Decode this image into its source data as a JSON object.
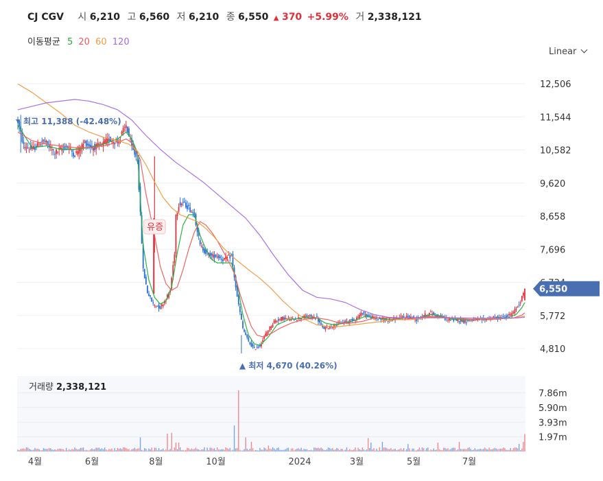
{
  "header": {
    "name": "CJ CGV",
    "open_label": "시",
    "open": "6,210",
    "high_label": "고",
    "high": "6,560",
    "low_label": "저",
    "low": "6,210",
    "close_label": "종",
    "close": "6,550",
    "change": "370",
    "change_pct": "+5.99%",
    "volume_label": "거",
    "volume": "2,338,121"
  },
  "ma_legend": {
    "label": "이동평균",
    "items": [
      {
        "text": "5",
        "color": "#1fae3a"
      },
      {
        "text": "20",
        "color": "#f0595c"
      },
      {
        "text": "60",
        "color": "#f29a3e"
      },
      {
        "text": "120",
        "color": "#a569e0"
      }
    ]
  },
  "scale_selector": "Linear",
  "colors": {
    "up": "#e0313b",
    "down": "#2a6fd6",
    "badge": "#4a6fb0",
    "ma5": "#1fae3a",
    "ma20": "#f0595c",
    "ma60": "#f29a3e",
    "ma120": "#a569e0"
  },
  "chart_data": [
    {
      "type": "candlestick",
      "y_ticks": [
        12506,
        11544,
        10582,
        9620,
        8658,
        7696,
        6734,
        5772,
        4810
      ],
      "y_tick_labels": [
        "12,506",
        "11,544",
        "10,582",
        "9,620",
        "8,658",
        "7,696",
        "6,734",
        "5,772",
        "4,810"
      ],
      "x_tick_labels": [
        "4월",
        "6월",
        "8월",
        "10월",
        "2024",
        "3월",
        "5월",
        "7월"
      ],
      "ylim": [
        4600,
        12700
      ],
      "last_price_label": "6,550",
      "annotations": [
        {
          "text": "최고 11,388 (-42.48%)",
          "value": 11388
        },
        {
          "text": "최저 4,670 (40.26%)",
          "value": 4670
        },
        {
          "text": "유증"
        }
      ],
      "price_path": [
        [
          0,
          11400
        ],
        [
          4,
          10700
        ],
        [
          10,
          10600
        ],
        [
          18,
          10850
        ],
        [
          26,
          10500
        ],
        [
          34,
          10700
        ],
        [
          40,
          10450
        ],
        [
          47,
          10800
        ],
        [
          52,
          10650
        ],
        [
          58,
          10700
        ],
        [
          64,
          10900
        ],
        [
          70,
          10800
        ],
        [
          76,
          11300
        ],
        [
          80,
          10650
        ],
        [
          84,
          10300
        ],
        [
          86,
          8700
        ],
        [
          88,
          7100
        ],
        [
          91,
          6450
        ],
        [
          95,
          6100
        ],
        [
          100,
          6000
        ],
        [
          104,
          6250
        ],
        [
          107,
          6500
        ],
        [
          110,
          7600
        ],
        [
          111,
          8700
        ],
        [
          113,
          9000
        ],
        [
          116,
          9050
        ],
        [
          120,
          8900
        ],
        [
          124,
          8700
        ],
        [
          128,
          7800
        ],
        [
          132,
          7600
        ],
        [
          136,
          7500
        ],
        [
          140,
          7500
        ],
        [
          144,
          7400
        ],
        [
          150,
          7500
        ],
        [
          154,
          6300
        ],
        [
          158,
          5400
        ],
        [
          162,
          5000
        ],
        [
          166,
          4800
        ],
        [
          170,
          4900
        ],
        [
          175,
          5300
        ],
        [
          180,
          5600
        ],
        [
          186,
          5700
        ],
        [
          192,
          5650
        ],
        [
          198,
          5700
        ],
        [
          204,
          5750
        ],
        [
          210,
          5700
        ],
        [
          214,
          5400
        ],
        [
          220,
          5450
        ],
        [
          226,
          5550
        ],
        [
          232,
          5600
        ],
        [
          238,
          5700
        ],
        [
          242,
          5850
        ],
        [
          246,
          5750
        ],
        [
          250,
          5700
        ],
        [
          256,
          5650
        ],
        [
          262,
          5650
        ],
        [
          268,
          5700
        ],
        [
          274,
          5750
        ],
        [
          280,
          5650
        ],
        [
          284,
          5750
        ],
        [
          290,
          5850
        ],
        [
          296,
          5750
        ],
        [
          302,
          5650
        ],
        [
          308,
          5650
        ],
        [
          314,
          5600
        ],
        [
          320,
          5650
        ],
        [
          326,
          5650
        ],
        [
          332,
          5700
        ],
        [
          338,
          5700
        ],
        [
          344,
          5750
        ],
        [
          348,
          5850
        ],
        [
          352,
          6100
        ],
        [
          355,
          6400
        ],
        [
          356,
          6550
        ]
      ],
      "ma5": [
        [
          0,
          11300
        ],
        [
          10,
          10650
        ],
        [
          20,
          10700
        ],
        [
          30,
          10600
        ],
        [
          40,
          10600
        ],
        [
          50,
          10650
        ],
        [
          60,
          10750
        ],
        [
          70,
          10900
        ],
        [
          76,
          11100
        ],
        [
          80,
          10900
        ],
        [
          84,
          10500
        ],
        [
          86,
          9200
        ],
        [
          88,
          7800
        ],
        [
          92,
          6800
        ],
        [
          96,
          6300
        ],
        [
          100,
          6100
        ],
        [
          104,
          6200
        ],
        [
          108,
          6600
        ],
        [
          112,
          7600
        ],
        [
          116,
          8400
        ],
        [
          120,
          8700
        ],
        [
          124,
          8700
        ],
        [
          128,
          8100
        ],
        [
          132,
          7700
        ],
        [
          136,
          7400
        ],
        [
          140,
          7300
        ],
        [
          144,
          7300
        ],
        [
          150,
          7300
        ],
        [
          154,
          6700
        ],
        [
          158,
          5800
        ],
        [
          162,
          5200
        ],
        [
          166,
          4950
        ],
        [
          170,
          4900
        ],
        [
          176,
          5150
        ],
        [
          182,
          5500
        ],
        [
          190,
          5650
        ],
        [
          200,
          5700
        ],
        [
          210,
          5700
        ],
        [
          216,
          5550
        ],
        [
          222,
          5500
        ],
        [
          230,
          5550
        ],
        [
          238,
          5650
        ],
        [
          244,
          5750
        ],
        [
          252,
          5700
        ],
        [
          262,
          5650
        ],
        [
          272,
          5700
        ],
        [
          282,
          5700
        ],
        [
          290,
          5800
        ],
        [
          298,
          5750
        ],
        [
          306,
          5650
        ],
        [
          316,
          5650
        ],
        [
          326,
          5650
        ],
        [
          336,
          5700
        ],
        [
          344,
          5700
        ],
        [
          350,
          5800
        ],
        [
          354,
          6000
        ],
        [
          356,
          6150
        ]
      ],
      "ma20": [
        [
          0,
          11100
        ],
        [
          10,
          10850
        ],
        [
          20,
          10750
        ],
        [
          30,
          10700
        ],
        [
          40,
          10650
        ],
        [
          50,
          10650
        ],
        [
          60,
          10700
        ],
        [
          70,
          10800
        ],
        [
          76,
          10900
        ],
        [
          80,
          10800
        ],
        [
          86,
          10300
        ],
        [
          90,
          9300
        ],
        [
          96,
          8100
        ],
        [
          100,
          7200
        ],
        [
          104,
          6700
        ],
        [
          108,
          6500
        ],
        [
          112,
          6600
        ],
        [
          116,
          7100
        ],
        [
          120,
          7700
        ],
        [
          124,
          8200
        ],
        [
          128,
          8500
        ],
        [
          132,
          8400
        ],
        [
          136,
          8200
        ],
        [
          140,
          7950
        ],
        [
          144,
          7650
        ],
        [
          148,
          7350
        ],
        [
          152,
          7000
        ],
        [
          156,
          6400
        ],
        [
          160,
          5900
        ],
        [
          164,
          5450
        ],
        [
          168,
          5200
        ],
        [
          172,
          5150
        ],
        [
          178,
          5250
        ],
        [
          184,
          5400
        ],
        [
          192,
          5550
        ],
        [
          200,
          5650
        ],
        [
          210,
          5700
        ],
        [
          218,
          5650
        ],
        [
          226,
          5550
        ],
        [
          234,
          5550
        ],
        [
          242,
          5600
        ],
        [
          250,
          5700
        ],
        [
          260,
          5700
        ],
        [
          270,
          5650
        ],
        [
          280,
          5700
        ],
        [
          290,
          5750
        ],
        [
          300,
          5720
        ],
        [
          310,
          5680
        ],
        [
          320,
          5650
        ],
        [
          330,
          5650
        ],
        [
          340,
          5680
        ],
        [
          348,
          5700
        ],
        [
          354,
          5780
        ],
        [
          356,
          5850
        ]
      ],
      "ma60": [
        [
          0,
          12500
        ],
        [
          10,
          12250
        ],
        [
          20,
          11950
        ],
        [
          30,
          11650
        ],
        [
          40,
          11300
        ],
        [
          50,
          11100
        ],
        [
          60,
          10950
        ],
        [
          70,
          10850
        ],
        [
          78,
          10750
        ],
        [
          84,
          10550
        ],
        [
          90,
          10150
        ],
        [
          96,
          9650
        ],
        [
          102,
          9200
        ],
        [
          108,
          8900
        ],
        [
          114,
          8700
        ],
        [
          120,
          8600
        ],
        [
          126,
          8500
        ],
        [
          132,
          8300
        ],
        [
          138,
          8050
        ],
        [
          144,
          7750
        ],
        [
          150,
          7500
        ],
        [
          156,
          7300
        ],
        [
          162,
          7100
        ],
        [
          170,
          6850
        ],
        [
          178,
          6550
        ],
        [
          186,
          6200
        ],
        [
          194,
          5900
        ],
        [
          202,
          5650
        ],
        [
          210,
          5500
        ],
        [
          218,
          5450
        ],
        [
          226,
          5450
        ],
        [
          236,
          5500
        ],
        [
          246,
          5550
        ],
        [
          256,
          5600
        ],
        [
          266,
          5650
        ],
        [
          276,
          5650
        ],
        [
          286,
          5700
        ],
        [
          296,
          5700
        ],
        [
          306,
          5700
        ],
        [
          316,
          5700
        ],
        [
          326,
          5680
        ],
        [
          336,
          5680
        ],
        [
          346,
          5690
        ],
        [
          352,
          5720
        ],
        [
          356,
          5750
        ]
      ],
      "ma120": [
        [
          0,
          11750
        ],
        [
          10,
          11850
        ],
        [
          20,
          11950
        ],
        [
          30,
          12000
        ],
        [
          40,
          12050
        ],
        [
          50,
          12000
        ],
        [
          60,
          11900
        ],
        [
          70,
          11750
        ],
        [
          80,
          11450
        ],
        [
          90,
          11000
        ],
        [
          100,
          10600
        ],
        [
          110,
          10250
        ],
        [
          120,
          9950
        ],
        [
          130,
          9650
        ],
        [
          140,
          9300
        ],
        [
          150,
          8950
        ],
        [
          160,
          8600
        ],
        [
          170,
          8100
        ],
        [
          180,
          7500
        ],
        [
          190,
          6950
        ],
        [
          200,
          6500
        ],
        [
          210,
          6300
        ],
        [
          220,
          6250
        ],
        [
          230,
          6150
        ],
        [
          240,
          5950
        ],
        [
          250,
          5800
        ],
        [
          260,
          5720
        ],
        [
          270,
          5700
        ],
        [
          280,
          5710
        ],
        [
          290,
          5720
        ],
        [
          300,
          5710
        ],
        [
          310,
          5700
        ],
        [
          320,
          5690
        ],
        [
          330,
          5690
        ],
        [
          340,
          5690
        ],
        [
          350,
          5700
        ],
        [
          356,
          5720
        ]
      ]
    },
    {
      "type": "bar",
      "title": "거래량",
      "title_value": "2,338,121",
      "y_ticks": [
        1970000,
        3930000,
        5900000,
        7860000
      ],
      "y_tick_labels": [
        "1.97m",
        "3.93m",
        "5.90m",
        "7.86m"
      ],
      "ylim": [
        0,
        9000000
      ],
      "spikes": [
        [
          86,
          1900000
        ],
        [
          105,
          2400000
        ],
        [
          108,
          2500000
        ],
        [
          111,
          1200000
        ],
        [
          113,
          1200000
        ],
        [
          152,
          3500000
        ],
        [
          155,
          8200000
        ],
        [
          160,
          1900000
        ],
        [
          164,
          1300000
        ],
        [
          176,
          800000
        ],
        [
          246,
          1800000
        ],
        [
          248,
          1200000
        ],
        [
          256,
          1300000
        ],
        [
          274,
          1000000
        ],
        [
          295,
          1200000
        ],
        [
          310,
          1300000
        ],
        [
          352,
          1000000
        ],
        [
          355,
          1300000
        ],
        [
          356,
          2338121
        ]
      ]
    }
  ]
}
